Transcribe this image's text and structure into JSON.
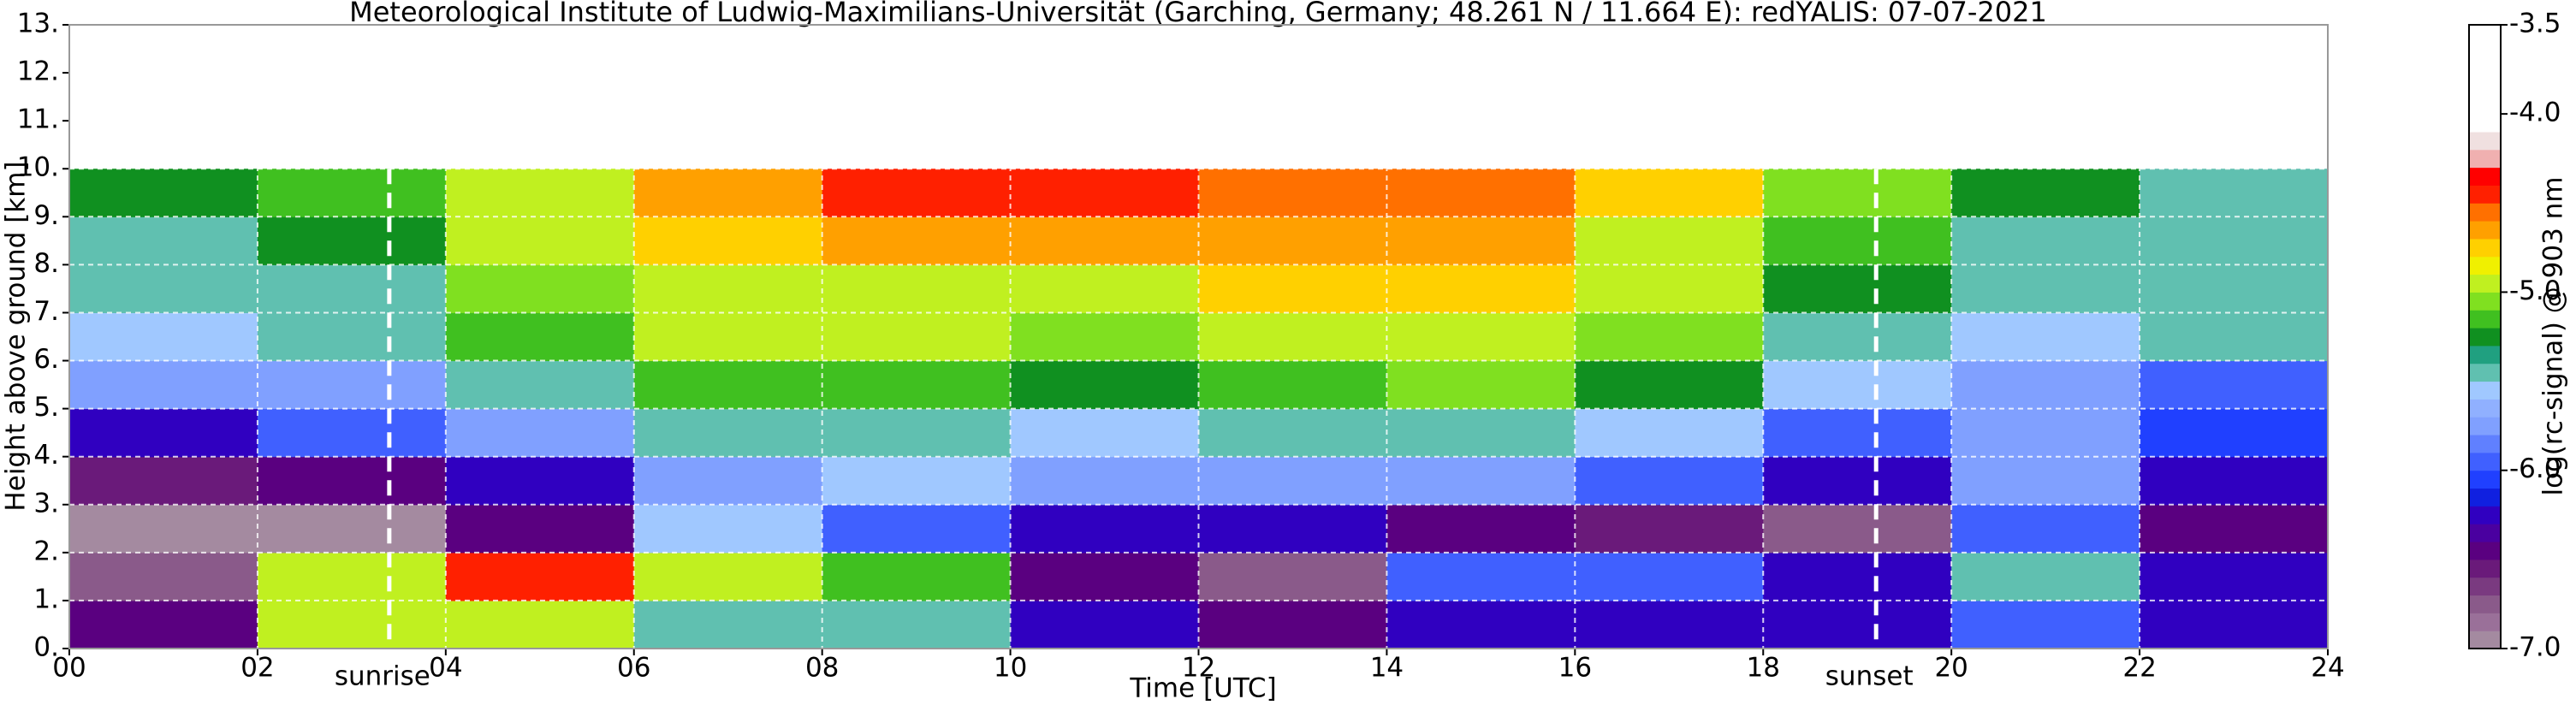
{
  "chart_data": {
    "type": "heatmap",
    "title": "Meteorological Institute of Ludwig-Maximilians-Universität (Garching, Germany; 48.261 N / 11.664 E):    redYALIS: 07-07-2021",
    "xlabel": "Time [UTC]",
    "ylabel": "Height above ground [km]",
    "colorbar_label": "log(rc-signal) @ 903 nm",
    "xlim": [
      0,
      24
    ],
    "xticks": [
      {
        "value": 0,
        "label": "00"
      },
      {
        "value": 2,
        "label": "02"
      },
      {
        "value": 4,
        "label": "04"
      },
      {
        "value": 6,
        "label": "06"
      },
      {
        "value": 8,
        "label": "08"
      },
      10,
      12,
      14,
      16,
      18,
      20,
      22,
      24
    ],
    "ylim": [
      0,
      13
    ],
    "yticks": [
      {
        "value": 0,
        "label": "0."
      },
      {
        "value": 1,
        "label": "1."
      },
      {
        "value": 2,
        "label": "2."
      },
      {
        "value": 3,
        "label": "3."
      },
      {
        "value": 4,
        "label": "4."
      },
      {
        "value": 5,
        "label": "5."
      },
      {
        "value": 6,
        "label": "6."
      },
      {
        "value": 7,
        "label": "7."
      },
      {
        "value": 8,
        "label": "8."
      },
      {
        "value": 9,
        "label": "9."
      },
      {
        "value": 10,
        "label": "10."
      },
      {
        "value": 11,
        "label": "11."
      },
      {
        "value": 12,
        "label": "12."
      },
      {
        "value": 13,
        "label": "13."
      }
    ],
    "clim": [
      -7,
      -3.5
    ],
    "cticks": [
      -3.5,
      {
        "value": -4,
        "label": "-4.0"
      },
      {
        "value": -5,
        "label": "-5.0"
      },
      {
        "value": -6,
        "label": "-6.0"
      },
      {
        "value": -7,
        "label": "-7.0"
      }
    ],
    "colormap": [
      "#a48aa0",
      "#9a7099",
      "#8a5a8a",
      "#7a3a80",
      "#6a1a7a",
      "#5a0080",
      "#4a00a0",
      "#3000c0",
      "#1020e0",
      "#2040ff",
      "#4060ff",
      "#6080ff",
      "#80a0ff",
      "#90b0ff",
      "#a0c8ff",
      "#60c0b0",
      "#20a080",
      "#109020",
      "#40c020",
      "#80e020",
      "#c0f020",
      "#f0f000",
      "#ffd000",
      "#ffa000",
      "#ff7000",
      "#ff2000",
      "#ff0000",
      "#f0b0b0",
      "#f0e0e0",
      "#ffffff",
      "#ffffff",
      "#ffffff",
      "#ffffff",
      "#ffffff",
      "#ffffff"
    ],
    "grid": true,
    "x": [
      1,
      3,
      5,
      7,
      9,
      11,
      13,
      15,
      17,
      19,
      21,
      23
    ],
    "y": [
      0.5,
      1.5,
      2.5,
      3.5,
      4.5,
      5.5,
      6.5,
      7.5,
      8.5,
      9.5
    ],
    "z": [
      [
        -6.5,
        -5.0,
        -5.0,
        -5.5,
        -5.5,
        -6.2,
        -6.4,
        -6.3,
        -6.3,
        -6.3,
        -6.0,
        -6.2
      ],
      [
        -6.8,
        -5.0,
        -4.5,
        -5.0,
        -5.2,
        -6.5,
        -6.8,
        -6.0,
        -6.0,
        -6.2,
        -5.5,
        -6.3
      ],
      [
        -6.9,
        -6.9,
        -6.5,
        -5.6,
        -6.0,
        -6.3,
        -6.2,
        -6.5,
        -6.6,
        -6.8,
        -6.0,
        -6.5
      ],
      [
        -6.6,
        -6.5,
        -6.2,
        -5.8,
        -5.6,
        -5.8,
        -5.7,
        -5.8,
        -6.0,
        -6.3,
        -5.8,
        -6.3
      ],
      [
        -6.2,
        -6.0,
        -5.8,
        -5.5,
        -5.4,
        -5.6,
        -5.5,
        -5.4,
        -5.6,
        -5.9,
        -5.8,
        -6.1
      ],
      [
        -5.8,
        -5.7,
        -5.4,
        -5.2,
        -5.2,
        -5.3,
        -5.2,
        -5.1,
        -5.3,
        -5.6,
        -5.7,
        -5.9
      ],
      [
        -5.6,
        -5.5,
        -5.2,
        -5.0,
        -5.0,
        -5.1,
        -5.0,
        -4.9,
        -5.1,
        -5.4,
        -5.6,
        -5.5
      ],
      [
        -5.5,
        -5.4,
        -5.1,
        -4.9,
        -4.9,
        -4.9,
        -4.8,
        -4.8,
        -5.0,
        -5.3,
        -5.5,
        -5.4
      ],
      [
        -5.4,
        -5.3,
        -5.0,
        -4.8,
        -4.7,
        -4.7,
        -4.7,
        -4.7,
        -4.9,
        -5.2,
        -5.4,
        -5.5
      ],
      [
        -5.3,
        -5.2,
        -4.9,
        -4.7,
        -4.5,
        -4.5,
        -4.6,
        -4.6,
        -4.8,
        -5.1,
        -5.3,
        -5.5
      ]
    ],
    "annotations": [
      {
        "text": "sunrise",
        "x": 3.4
      },
      {
        "text": "sunset",
        "x": 19.2
      }
    ]
  }
}
